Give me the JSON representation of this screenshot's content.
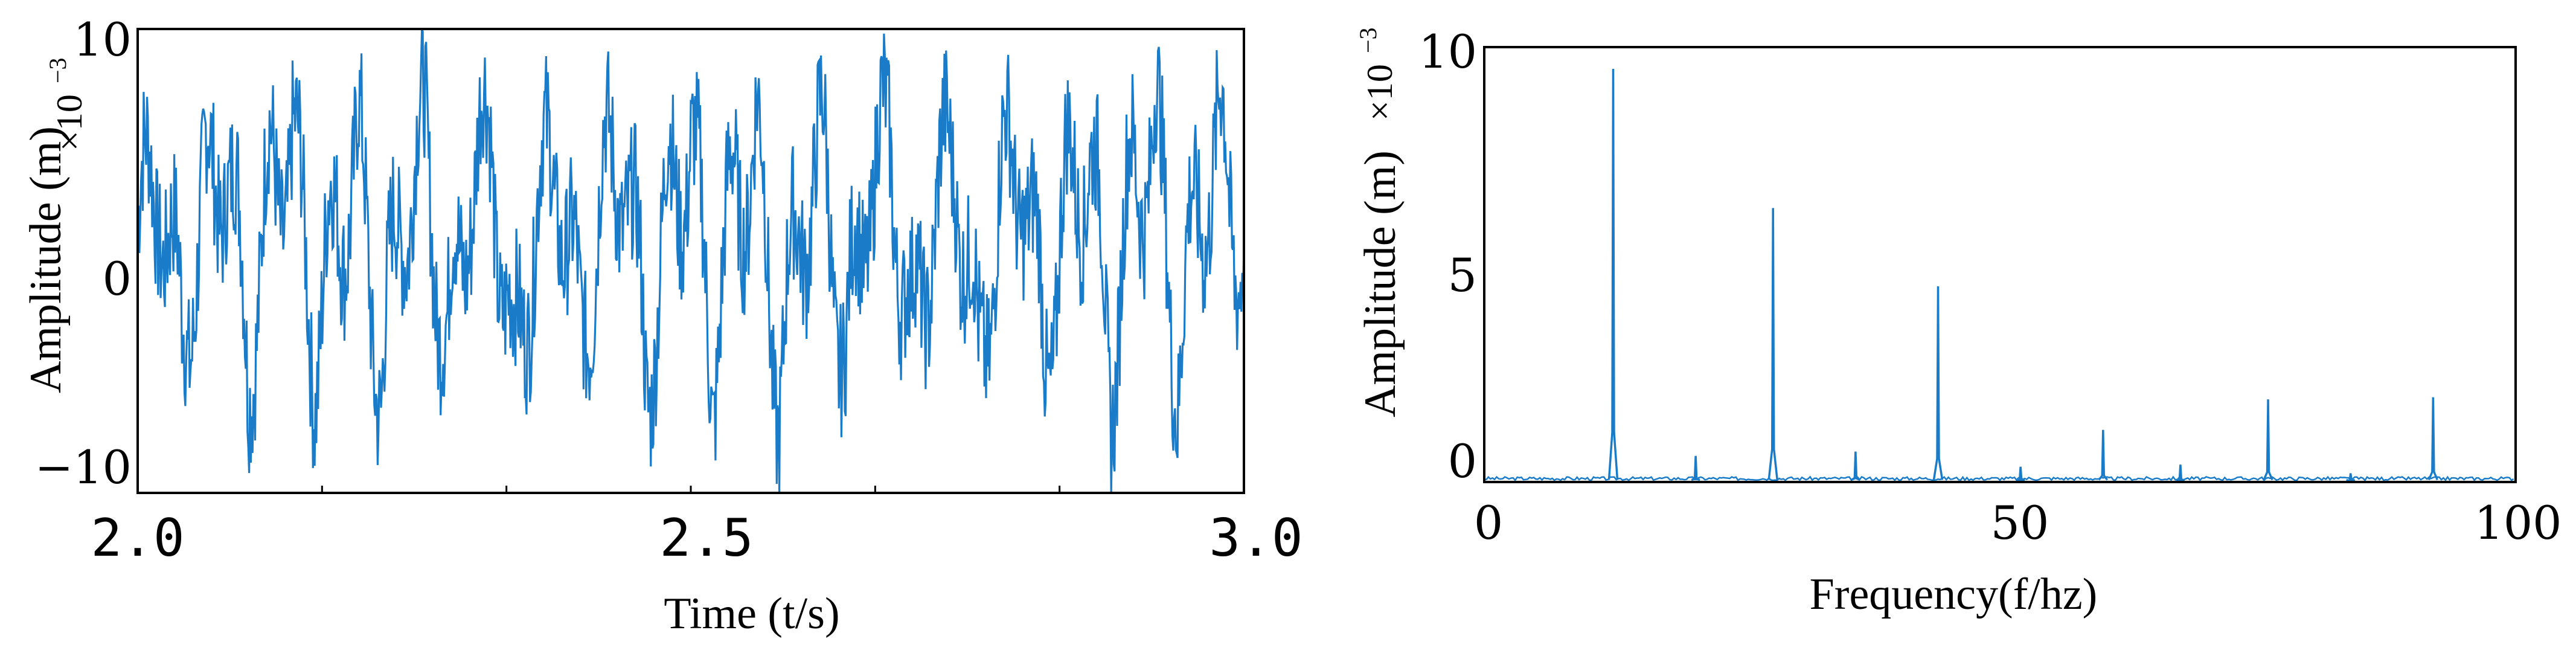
{
  "chart_data": [
    {
      "type": "line",
      "xlabel": "Time (t/s)",
      "ylabel": "Amplitude (m)",
      "y_multiplier": {
        "base": "×10",
        "exponent": "−3"
      },
      "xlim": [
        2.0,
        3.0
      ],
      "ylim": [
        -10,
        10
      ],
      "xticks": [
        {
          "value": 2.0,
          "label": "2.0"
        },
        {
          "value": 2.5,
          "label": "2.5"
        },
        {
          "value": 3.0,
          "label": "3.0"
        }
      ],
      "yticks": [
        {
          "value": 10,
          "label": "10"
        },
        {
          "value": 0,
          "label": "0"
        },
        {
          "value": -10,
          "label": "−10"
        }
      ],
      "color": "#1a7cc9",
      "series": [
        {
          "x": [
            2.0,
            2.02,
            2.04,
            2.06,
            2.08,
            2.1,
            2.12,
            2.14,
            2.16,
            2.18,
            2.2,
            2.22,
            2.24,
            2.26,
            2.28,
            2.3,
            2.32,
            2.34,
            2.36,
            2.38,
            2.4,
            2.42,
            2.44,
            2.46,
            2.48,
            2.5,
            2.52,
            2.54,
            2.56,
            2.58,
            2.6,
            2.62,
            2.64,
            2.66,
            2.68,
            2.7,
            2.72,
            2.74,
            2.76,
            2.78,
            2.8,
            2.82,
            2.84,
            2.86,
            2.88,
            2.9,
            2.92,
            2.94,
            2.96,
            2.98,
            3.0
          ],
          "y": [
            2.5,
            6.8,
            -6.2,
            4.1,
            8.9,
            -7.5,
            5.6,
            9.1,
            -6.8,
            3.2,
            7.4,
            -9.0,
            4.9,
            8.6,
            -7.1,
            6.0,
            8.8,
            -9.4,
            3.6,
            7.8,
            -6.5,
            5.3,
            8.3,
            -8.7,
            4.4,
            9.2,
            -7.7,
            5.8,
            8.1,
            -9.8,
            4.0,
            7.6,
            -8.2,
            6.1,
            8.7,
            -6.9,
            3.9,
            8.4,
            -9.1,
            5.5,
            7.9,
            -7.3,
            4.6,
            8.8,
            -8.5,
            6.3,
            9.8,
            -7.9,
            5.1,
            8.2,
            0.6
          ]
        }
      ]
    },
    {
      "type": "line",
      "xlabel": "Frequency(f/hz)",
      "ylabel": "Amplitude (m)",
      "y_multiplier": {
        "base": "×10",
        "exponent": "−3"
      },
      "xlim": [
        0,
        100
      ],
      "ylim": [
        0,
        10
      ],
      "xticks": [
        {
          "value": 0,
          "label": "0"
        },
        {
          "value": 50,
          "label": "50"
        },
        {
          "value": 100,
          "label": "100"
        }
      ],
      "yticks": [
        {
          "value": 10,
          "label": "10"
        },
        {
          "value": 5,
          "label": "5"
        },
        {
          "value": 0,
          "label": "0"
        }
      ],
      "color": "#1a7cc9",
      "peaks": [
        {
          "x": 12.5,
          "y": 9.5
        },
        {
          "x": 20.5,
          "y": 0.6
        },
        {
          "x": 28.0,
          "y": 6.3
        },
        {
          "x": 36.0,
          "y": 0.7
        },
        {
          "x": 44.0,
          "y": 4.5
        },
        {
          "x": 52.0,
          "y": 0.35
        },
        {
          "x": 60.0,
          "y": 1.2
        },
        {
          "x": 67.5,
          "y": 0.4
        },
        {
          "x": 76.0,
          "y": 1.9
        },
        {
          "x": 84.0,
          "y": 0.2
        },
        {
          "x": 92.0,
          "y": 1.95
        }
      ]
    }
  ]
}
